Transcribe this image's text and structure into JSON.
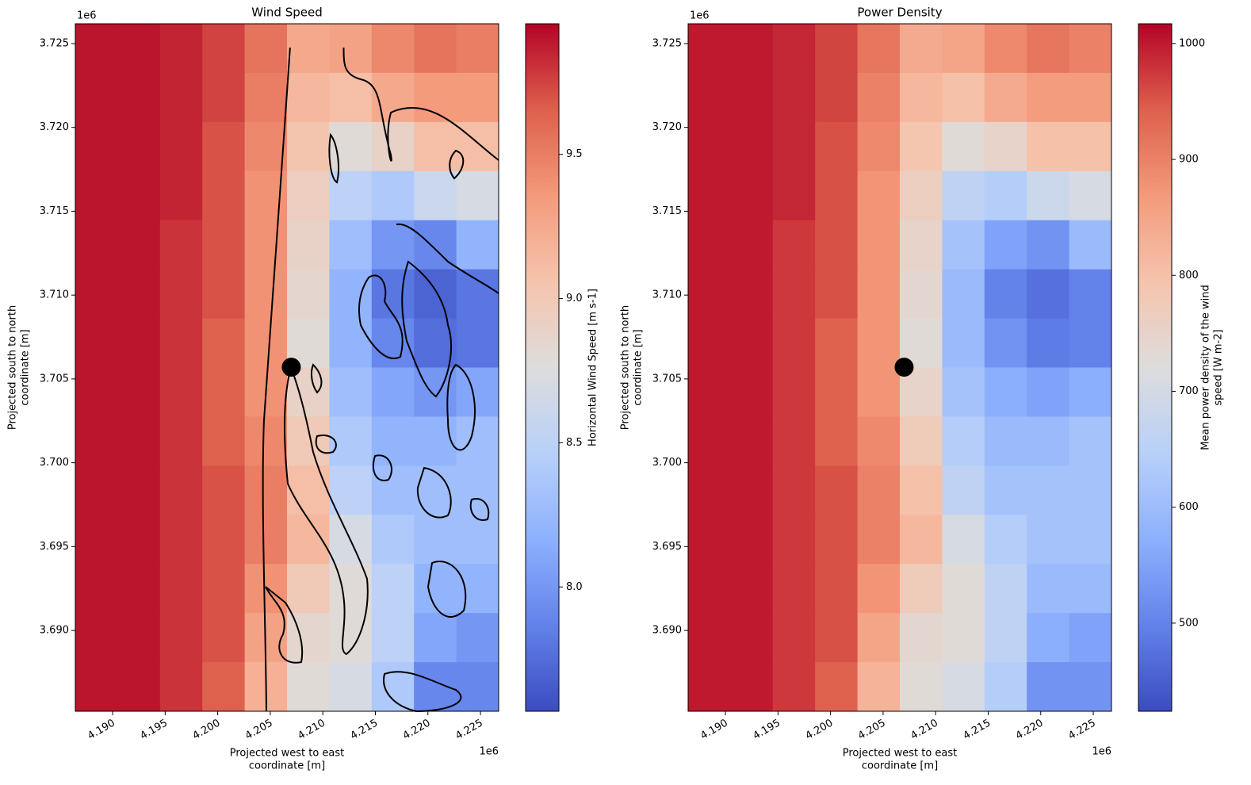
{
  "chart_data": [
    {
      "type": "heatmap",
      "title": "Wind Speed",
      "cmap": "coolwarm",
      "xlabel": [
        "Projected west to east",
        "coordinate [m]"
      ],
      "ylabel": [
        "Projected south to north",
        "coordinate [m]"
      ],
      "x_offset": "1e6",
      "y_offset": "1e6",
      "xlim": [
        4.18645,
        4.22673
      ],
      "ylim": [
        3.68518,
        3.72618
      ],
      "xticks": [
        {
          "value": 4.19,
          "label": "4.190"
        },
        4.195,
        {
          "value": 4.2,
          "label": "4.200"
        },
        4.205,
        {
          "value": 4.21,
          "label": "4.210"
        },
        4.215,
        {
          "value": 4.22,
          "label": "4.220"
        },
        4.225
      ],
      "yticks": [
        {
          "value": 3.69,
          "label": "3.690"
        },
        3.695,
        {
          "value": 3.7,
          "label": "3.700"
        },
        3.705,
        {
          "value": 3.71,
          "label": "3.710"
        },
        3.715,
        {
          "value": 3.72,
          "label": "3.720"
        },
        3.725
      ],
      "colorbar": {
        "label": [
          "Horizontal Wind Speed [m s-1]"
        ],
        "lim": [
          7.569,
          9.953
        ],
        "ticks": [
          {
            "value": 8,
            "label": "8.0"
          },
          8.5,
          {
            "value": 9,
            "label": "9.0"
          },
          9.5
        ]
      },
      "marker": {
        "x": 4.207,
        "y": 3.7057
      },
      "z": [
        [
          9.9,
          9.9,
          9.85,
          9.75,
          9.55,
          9.25,
          9.3,
          9.45,
          9.55,
          9.5
        ],
        [
          9.9,
          9.9,
          9.85,
          9.75,
          9.5,
          9.15,
          9.1,
          9.25,
          9.35,
          9.35
        ],
        [
          9.9,
          9.9,
          9.85,
          9.7,
          9.45,
          9.05,
          8.8,
          8.9,
          9.1,
          9.1
        ],
        [
          9.9,
          9.9,
          9.85,
          9.7,
          9.4,
          8.95,
          8.5,
          8.4,
          8.6,
          8.7
        ],
        [
          9.9,
          9.9,
          9.8,
          9.7,
          9.4,
          8.9,
          8.3,
          8.0,
          7.9,
          8.2
        ],
        [
          9.9,
          9.9,
          9.8,
          9.7,
          9.4,
          8.85,
          8.2,
          7.8,
          7.7,
          7.8
        ],
        [
          9.9,
          9.9,
          9.8,
          9.65,
          9.4,
          8.8,
          8.2,
          7.9,
          7.75,
          7.8
        ],
        [
          9.9,
          9.9,
          9.8,
          9.65,
          9.4,
          8.9,
          8.3,
          8.1,
          8.0,
          8.1
        ],
        [
          9.9,
          9.9,
          9.8,
          9.65,
          9.45,
          9.0,
          8.4,
          8.2,
          8.2,
          8.3
        ],
        [
          9.9,
          9.9,
          9.8,
          9.7,
          9.5,
          9.1,
          8.5,
          8.3,
          8.3,
          8.3
        ],
        [
          9.9,
          9.9,
          9.8,
          9.7,
          9.5,
          9.15,
          8.7,
          8.4,
          8.3,
          8.3
        ],
        [
          9.9,
          9.9,
          9.8,
          9.7,
          9.4,
          9.0,
          8.8,
          8.5,
          8.2,
          8.2
        ],
        [
          9.9,
          9.9,
          9.8,
          9.7,
          9.3,
          8.85,
          8.8,
          8.5,
          8.1,
          8.0
        ],
        [
          9.9,
          9.9,
          9.8,
          9.65,
          9.2,
          8.8,
          8.7,
          8.4,
          7.9,
          7.9
        ]
      ]
    },
    {
      "type": "heatmap",
      "title": "Power Density",
      "cmap": "coolwarm",
      "xlabel": [
        "Projected west to east",
        "coordinate [m]"
      ],
      "ylabel": [
        "Projected south to north",
        "coordinate [m]"
      ],
      "x_offset": "1e6",
      "y_offset": "1e6",
      "xlim": [
        4.18645,
        4.22673
      ],
      "ylim": [
        3.68518,
        3.72618
      ],
      "xticks": [
        {
          "value": 4.19,
          "label": "4.190"
        },
        4.195,
        {
          "value": 4.2,
          "label": "4.200"
        },
        4.205,
        {
          "value": 4.21,
          "label": "4.210"
        },
        4.215,
        {
          "value": 4.22,
          "label": "4.220"
        },
        4.225
      ],
      "yticks": [
        {
          "value": 3.69,
          "label": "3.690"
        },
        3.695,
        {
          "value": 3.7,
          "label": "3.700"
        },
        3.705,
        {
          "value": 3.71,
          "label": "3.710"
        },
        3.715,
        {
          "value": 3.72,
          "label": "3.720"
        },
        3.725
      ],
      "colorbar": {
        "label": [
          "Mean power density of the wind",
          "speed [W m-2]"
        ],
        "lim": [
          424,
          1017
        ],
        "ticks": [
          500,
          600,
          700,
          800,
          900,
          1000
        ]
      },
      "marker": {
        "x": 4.207,
        "y": 3.7057
      },
      "z": [
        [
          1000,
          1000,
          990,
          965,
          915,
          840,
          850,
          890,
          915,
          900
        ],
        [
          1000,
          1000,
          990,
          965,
          900,
          815,
          800,
          840,
          865,
          865
        ],
        [
          1000,
          1000,
          990,
          955,
          890,
          790,
          730,
          750,
          800,
          800
        ],
        [
          1000,
          1000,
          990,
          955,
          875,
          765,
          660,
          640,
          685,
          705
        ],
        [
          1000,
          1000,
          975,
          955,
          875,
          750,
          615,
          550,
          525,
          595
        ],
        [
          1000,
          1000,
          975,
          955,
          875,
          740,
          595,
          500,
          475,
          500
        ],
        [
          1000,
          1000,
          975,
          940,
          875,
          730,
          595,
          525,
          490,
          500
        ],
        [
          1000,
          1000,
          975,
          940,
          875,
          750,
          615,
          570,
          550,
          570
        ],
        [
          1000,
          1000,
          975,
          940,
          890,
          775,
          640,
          595,
          595,
          615
        ],
        [
          1000,
          1000,
          975,
          955,
          900,
          800,
          660,
          615,
          615,
          615
        ],
        [
          1000,
          1000,
          975,
          955,
          900,
          815,
          705,
          640,
          615,
          615
        ],
        [
          1000,
          1000,
          975,
          955,
          875,
          775,
          730,
          660,
          595,
          595
        ],
        [
          1000,
          1000,
          975,
          955,
          850,
          740,
          730,
          660,
          570,
          550
        ],
        [
          1000,
          1000,
          975,
          940,
          825,
          730,
          705,
          640,
          525,
          525
        ]
      ]
    }
  ]
}
